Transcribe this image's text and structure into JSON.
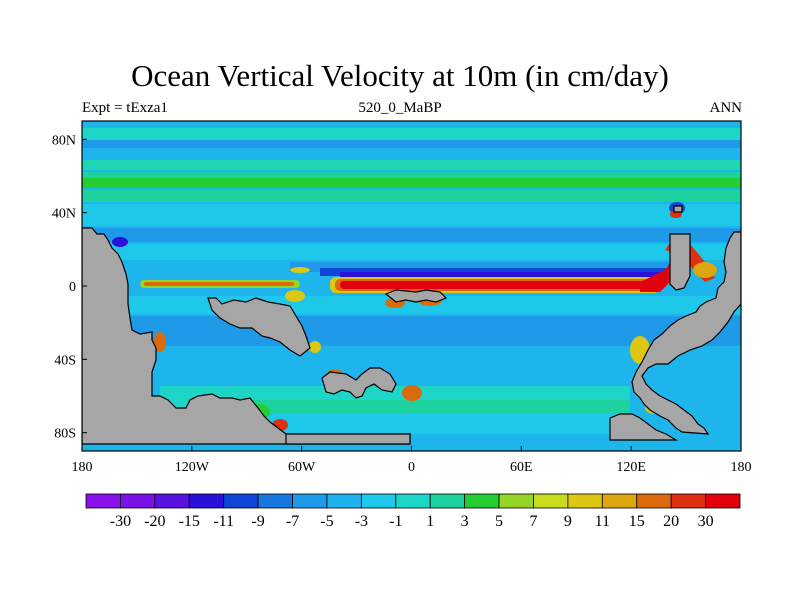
{
  "title": "Ocean Vertical Velocity at 10m (in cm/day)",
  "left_string": "Expt = tExza1",
  "center_string": "520_0_MaBP",
  "right_string": "ANN",
  "chart_data": {
    "type": "heatmap",
    "title": "Ocean Vertical Velocity at 10m (in cm/day)",
    "xlabel": "",
    "ylabel": "",
    "x_ticks": [
      "180",
      "120W",
      "60W",
      "0",
      "60E",
      "120E",
      "180"
    ],
    "y_ticks": [
      "80N",
      "40N",
      "0",
      "40S",
      "80S"
    ],
    "xlim": [
      -180,
      180
    ],
    "ylim": [
      -90,
      90
    ],
    "colorbar": {
      "labels": [
        "-30",
        "-20",
        "-15",
        "-11",
        "-9",
        "-7",
        "-5",
        "-3",
        "-1",
        "1",
        "3",
        "5",
        "7",
        "9",
        "11",
        "15",
        "20",
        "30"
      ],
      "colors": [
        "#8a12ea",
        "#7812e6",
        "#5a12e0",
        "#2a10d8",
        "#1046d8",
        "#1878e0",
        "#1e9ae8",
        "#20b2ee",
        "#1ec8e8",
        "#1ed6c8",
        "#1ed2a0",
        "#24ce32",
        "#96d428",
        "#c6dc1c",
        "#dcc814",
        "#dca60e",
        "#dc6a0c",
        "#dc3010",
        "#e0000e"
      ]
    },
    "land_color": "#a6a6a6"
  }
}
